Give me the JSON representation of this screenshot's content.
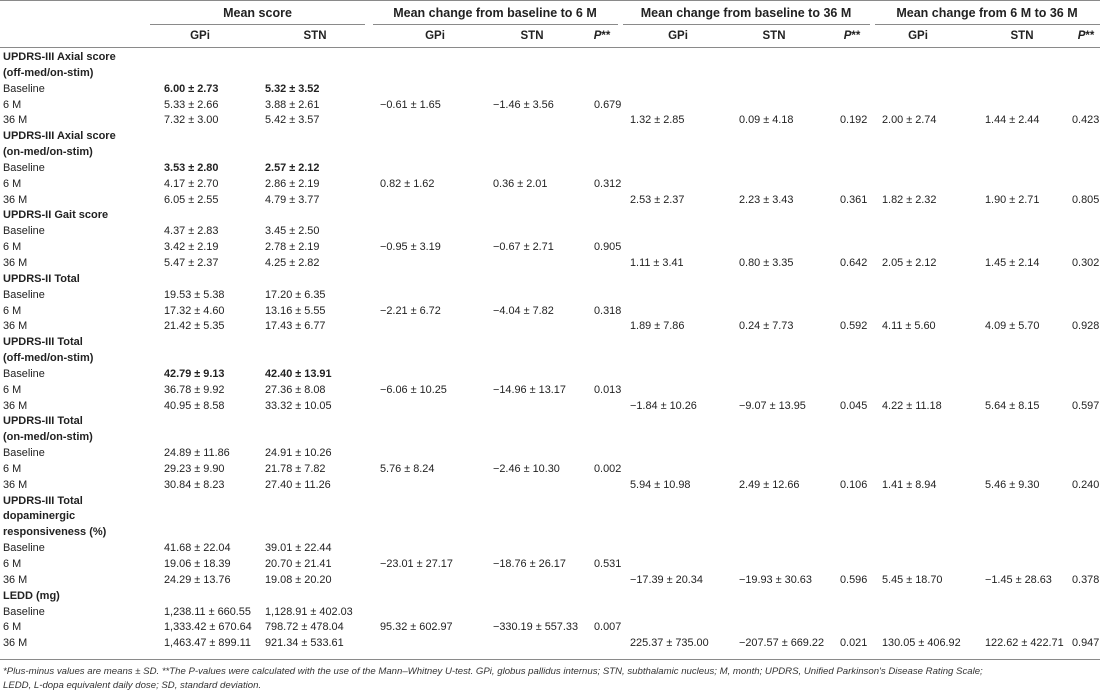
{
  "header": {
    "groups": [
      "Mean score",
      "Mean change from baseline to 6 M",
      "Mean change from baseline to 36 M",
      "Mean change from 6 M to 36 M"
    ],
    "gpi": "GPi",
    "stn": "STN",
    "p": "P",
    "p_sup": "**"
  },
  "rows": [
    {
      "t": "s",
      "label": "UPDRS-III Axial score"
    },
    {
      "t": "s",
      "label": "(off-med/on-stim)"
    },
    {
      "t": "d",
      "label": "Baseline",
      "v": [
        "6.00 ± 2.73",
        "5.32 ± 3.52",
        "",
        "",
        "",
        "",
        "",
        "",
        "",
        "",
        ""
      ],
      "bold": [
        0,
        1
      ]
    },
    {
      "t": "d",
      "label": "6 M",
      "v": [
        "5.33 ± 2.66",
        "3.88 ± 2.61",
        "−0.61 ± 1.65",
        "−1.46 ± 3.56",
        "0.679",
        "",
        "",
        "",
        "",
        "",
        ""
      ]
    },
    {
      "t": "d",
      "label": "36 M",
      "v": [
        "7.32 ± 3.00",
        "5.42 ± 3.57",
        "",
        "",
        "",
        "1.32 ± 2.85",
        "0.09 ± 4.18",
        "0.192",
        "2.00 ± 2.74",
        "1.44 ± 2.44",
        "0.423"
      ]
    },
    {
      "t": "s",
      "label": "UPDRS-III Axial score"
    },
    {
      "t": "s",
      "label": "(on-med/on-stim)"
    },
    {
      "t": "d",
      "label": "Baseline",
      "v": [
        "3.53 ± 2.80",
        "2.57 ± 2.12",
        "",
        "",
        "",
        "",
        "",
        "",
        "",
        "",
        ""
      ],
      "bold": [
        0,
        1
      ]
    },
    {
      "t": "d",
      "label": "6 M",
      "v": [
        "4.17 ± 2.70",
        "2.86 ± 2.19",
        "0.82 ± 1.62",
        "0.36 ± 2.01",
        "0.312",
        "",
        "",
        "",
        "",
        "",
        ""
      ]
    },
    {
      "t": "d",
      "label": "36 M",
      "v": [
        "6.05 ± 2.55",
        "4.79 ± 3.77",
        "",
        "",
        "",
        "2.53 ± 2.37",
        "2.23 ± 3.43",
        "0.361",
        "1.82 ± 2.32",
        "1.90 ± 2.71",
        "0.805"
      ]
    },
    {
      "t": "s",
      "label": "UPDRS-II Gait score"
    },
    {
      "t": "d",
      "label": "Baseline",
      "v": [
        "4.37 ± 2.83",
        "3.45 ± 2.50",
        "",
        "",
        "",
        "",
        "",
        "",
        "",
        "",
        ""
      ]
    },
    {
      "t": "d",
      "label": "6 M",
      "v": [
        "3.42 ± 2.19",
        "2.78 ± 2.19",
        "−0.95 ± 3.19",
        "−0.67 ± 2.71",
        "0.905",
        "",
        "",
        "",
        "",
        "",
        ""
      ]
    },
    {
      "t": "d",
      "label": "36 M",
      "v": [
        "5.47 ± 2.37",
        "4.25 ± 2.82",
        "",
        "",
        "",
        "1.11 ± 3.41",
        "0.80 ± 3.35",
        "0.642",
        "2.05 ± 2.12",
        "1.45 ± 2.14",
        "0.302"
      ]
    },
    {
      "t": "s",
      "label": "UPDRS-II Total"
    },
    {
      "t": "d",
      "label": "Baseline",
      "v": [
        "19.53 ± 5.38",
        "17.20 ± 6.35",
        "",
        "",
        "",
        "",
        "",
        "",
        "",
        "",
        ""
      ]
    },
    {
      "t": "d",
      "label": "6 M",
      "v": [
        "17.32 ± 4.60",
        "13.16 ± 5.55",
        "−2.21 ± 6.72",
        "−4.04 ± 7.82",
        "0.318",
        "",
        "",
        "",
        "",
        "",
        ""
      ]
    },
    {
      "t": "d",
      "label": "36 M",
      "v": [
        "21.42 ± 5.35",
        "17.43 ± 6.77",
        "",
        "",
        "",
        "1.89 ± 7.86",
        "0.24 ± 7.73",
        "0.592",
        "4.11 ± 5.60",
        "4.09 ± 5.70",
        "0.928"
      ]
    },
    {
      "t": "s",
      "label": "UPDRS-III Total"
    },
    {
      "t": "s",
      "label": "(off-med/on-stim)"
    },
    {
      "t": "d",
      "label": "Baseline",
      "v": [
        "42.79 ± 9.13",
        "42.40 ± 13.91",
        "",
        "",
        "",
        "",
        "",
        "",
        "",
        "",
        ""
      ],
      "bold": [
        0,
        1
      ]
    },
    {
      "t": "d",
      "label": "6 M",
      "v": [
        "36.78 ± 9.92",
        "27.36 ± 8.08",
        "−6.06 ± 10.25",
        "−14.96 ± 13.17",
        "0.013",
        "",
        "",
        "",
        "",
        "",
        ""
      ]
    },
    {
      "t": "d",
      "label": "36 M",
      "v": [
        "40.95 ± 8.58",
        "33.32 ± 10.05",
        "",
        "",
        "",
        "−1.84 ± 10.26",
        "−9.07 ± 13.95",
        "0.045",
        "4.22 ± 11.18",
        "5.64 ± 8.15",
        "0.597"
      ]
    },
    {
      "t": "s",
      "label": "UPDRS-III Total"
    },
    {
      "t": "s",
      "label": "(on-med/on-stim)"
    },
    {
      "t": "d",
      "label": "Baseline",
      "v": [
        "24.89 ± 11.86",
        "24.91 ± 10.26",
        "",
        "",
        "",
        "",
        "",
        "",
        "",
        "",
        ""
      ]
    },
    {
      "t": "d",
      "label": "6 M",
      "v": [
        "29.23 ± 9.90",
        "21.78 ± 7.82",
        "5.76 ± 8.24",
        "−2.46 ± 10.30",
        "0.002",
        "",
        "",
        "",
        "",
        "",
        ""
      ]
    },
    {
      "t": "d",
      "label": "36 M",
      "v": [
        "30.84 ± 8.23",
        "27.40 ± 11.26",
        "",
        "",
        "",
        "5.94 ± 10.98",
        "2.49 ± 12.66",
        "0.106",
        "1.41 ± 8.94",
        "5.46 ± 9.30",
        "0.240"
      ]
    },
    {
      "t": "s",
      "label": "UPDRS-III Total"
    },
    {
      "t": "s",
      "label": "dopaminergic"
    },
    {
      "t": "s",
      "label": "responsiveness (%)"
    },
    {
      "t": "d",
      "label": "Baseline",
      "v": [
        "41.68 ± 22.04",
        "39.01 ± 22.44",
        "",
        "",
        "",
        "",
        "",
        "",
        "",
        "",
        ""
      ]
    },
    {
      "t": "d",
      "label": "6 M",
      "v": [
        "19.06 ± 18.39",
        "20.70 ± 21.41",
        "−23.01 ± 27.17",
        "−18.76 ± 26.17",
        "0.531",
        "",
        "",
        "",
        "",
        "",
        ""
      ]
    },
    {
      "t": "d",
      "label": "36 M",
      "v": [
        "24.29 ± 13.76",
        "19.08 ± 20.20",
        "",
        "",
        "",
        "−17.39 ± 20.34",
        "−19.93 ± 30.63",
        "0.596",
        "5.45 ± 18.70",
        "−1.45 ± 28.63",
        "0.378"
      ]
    },
    {
      "t": "s",
      "label": "LEDD (mg)"
    },
    {
      "t": "d",
      "label": "Baseline",
      "v": [
        "1,238.11 ± 660.55",
        "1,128.91 ± 402.03",
        "",
        "",
        "",
        "",
        "",
        "",
        "",
        "",
        ""
      ]
    },
    {
      "t": "d",
      "label": "6 M",
      "v": [
        "1,333.42 ± 670.64",
        "798.72 ± 478.04",
        "95.32 ± 602.97",
        "−330.19 ± 557.33",
        "0.007",
        "",
        "",
        "",
        "",
        "",
        ""
      ]
    },
    {
      "t": "d",
      "label": "36 M",
      "v": [
        "1,463.47 ± 899.11",
        "921.34 ± 533.61",
        "",
        "",
        "",
        "225.37 ± 735.00",
        "−207.57 ± 669.22",
        "0.021",
        "130.05 ± 406.92",
        "122.62 ± 422.71",
        "0.947"
      ]
    }
  ],
  "footnote": {
    "line1": "*Plus-minus values are means ± SD. **The P-values were calculated with the use of the Mann–Whitney U-test. GPi, globus pallidus internus; STN, subthalamic nucleus; M, month; UPDRS, Unified Parkinson's Disease Rating Scale;",
    "line2": "LEDD, L-dopa equivalent daily dose; SD, standard deviation."
  }
}
